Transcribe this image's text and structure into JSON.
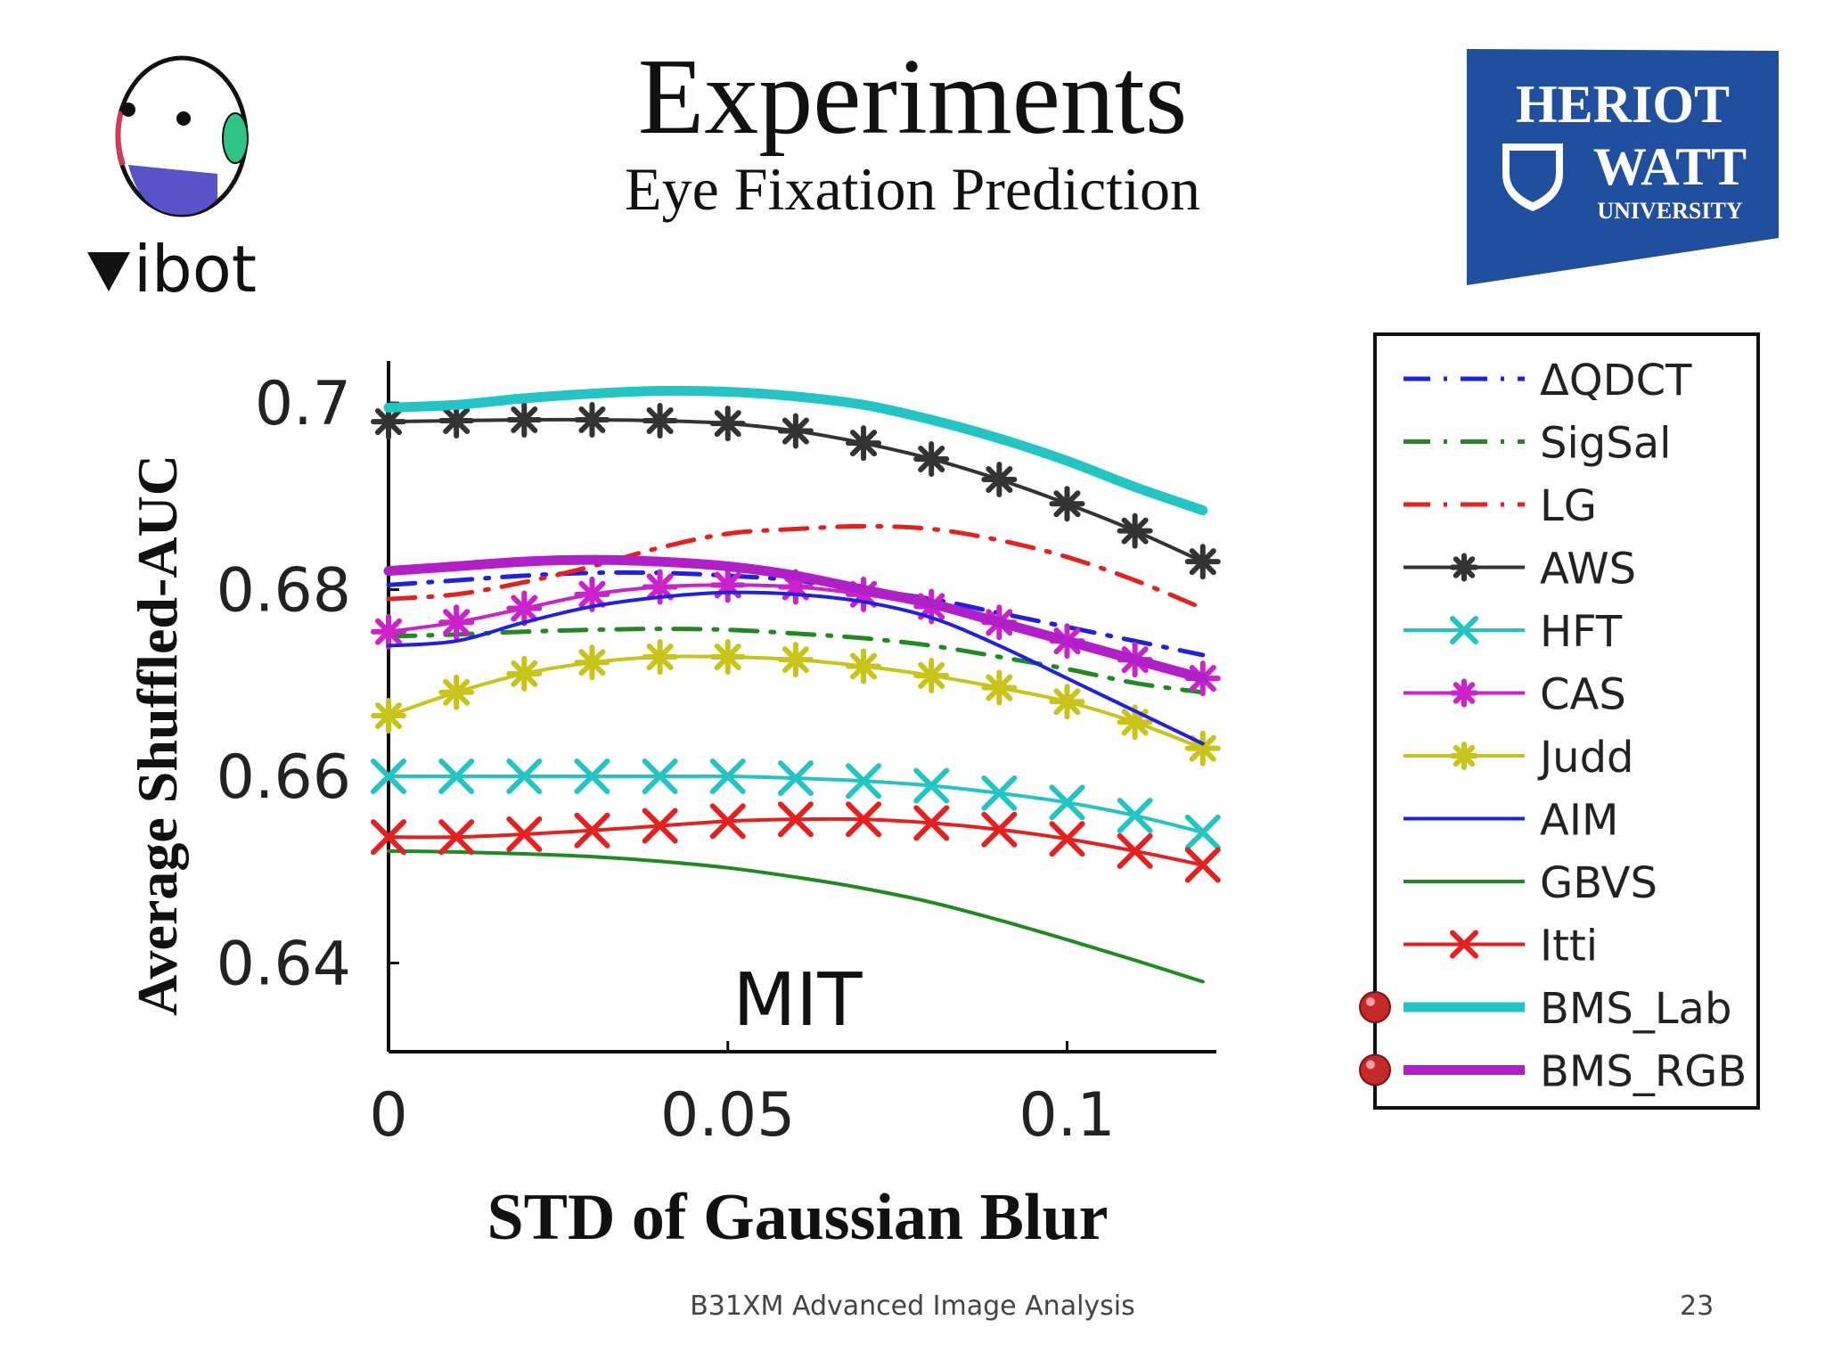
{
  "slide": {
    "title": "Experiments",
    "subtitle": "Eye Fixation Prediction",
    "footer": "B31XM Advanced Image Analysis",
    "page_number": "23",
    "left_logo_text": "ibot",
    "right_logo_lines": [
      "HERIOT",
      "WATT",
      "UNIVERSITY"
    ]
  },
  "chart_data": {
    "type": "line",
    "dataset_label": "MIT",
    "xlabel": "STD of Gaussian Blur",
    "ylabel": "Average Shuffled-AUC",
    "xlim": [
      0,
      0.122
    ],
    "ylim": [
      0.6305,
      0.7045
    ],
    "x_ticks": [
      0,
      0.05,
      0.1
    ],
    "x_tick_labels": [
      "0",
      "0.05",
      "0.1"
    ],
    "y_ticks": [
      0.64,
      0.66,
      0.68,
      0.7
    ],
    "y_tick_labels": [
      "0.64",
      "0.66",
      "0.68",
      "0.7"
    ],
    "grid": false,
    "legend_position": "right",
    "x": [
      0,
      0.01,
      0.02,
      0.03,
      0.04,
      0.05,
      0.06,
      0.07,
      0.08,
      0.09,
      0.1,
      0.11,
      0.12
    ],
    "series": [
      {
        "name": "ΔQDCT",
        "color": "#1f1fe6",
        "dash": "dashdot",
        "marker": "none",
        "width": 5,
        "values": [
          0.6805,
          0.681,
          0.6815,
          0.6818,
          0.6818,
          0.6815,
          0.681,
          0.68,
          0.679,
          0.6775,
          0.676,
          0.6745,
          0.673
        ]
      },
      {
        "name": "SigSal",
        "color": "#1f8a1f",
        "dash": "dashdot",
        "marker": "none",
        "width": 5,
        "values": [
          0.675,
          0.6752,
          0.6755,
          0.6757,
          0.6758,
          0.6757,
          0.6753,
          0.6748,
          0.674,
          0.6728,
          0.6715,
          0.67,
          0.669
        ]
      },
      {
        "name": "LG",
        "color": "#e61f1f",
        "dash": "dashdot",
        "marker": "none",
        "width": 5,
        "values": [
          0.679,
          0.6795,
          0.6808,
          0.6825,
          0.6845,
          0.686,
          0.6865,
          0.6868,
          0.6865,
          0.6853,
          0.6835,
          0.681,
          0.678
        ]
      },
      {
        "name": "AWS",
        "color": "#333333",
        "dash": "solid",
        "marker": "asterisk",
        "width": 4,
        "values": [
          0.698,
          0.6981,
          0.6982,
          0.6982,
          0.6981,
          0.6978,
          0.697,
          0.6957,
          0.694,
          0.6918,
          0.6892,
          0.6863,
          0.683
        ]
      },
      {
        "name": "HFT",
        "color": "#22c4c4",
        "dash": "solid",
        "marker": "x",
        "width": 4,
        "values": [
          0.66,
          0.66,
          0.66,
          0.66,
          0.66,
          0.66,
          0.6598,
          0.6595,
          0.659,
          0.6582,
          0.6572,
          0.6558,
          0.654
        ]
      },
      {
        "name": "CAS",
        "color": "#cc22cc",
        "dash": "solid",
        "marker": "asterisk",
        "width": 4,
        "values": [
          0.6755,
          0.6765,
          0.678,
          0.6795,
          0.6803,
          0.6805,
          0.6803,
          0.6795,
          0.6782,
          0.6765,
          0.6745,
          0.6725,
          0.6705
        ]
      },
      {
        "name": "Judd",
        "color": "#c8c41a",
        "dash": "solid",
        "marker": "asterisk",
        "width": 4,
        "values": [
          0.6665,
          0.669,
          0.671,
          0.6722,
          0.6728,
          0.6728,
          0.6725,
          0.6718,
          0.6708,
          0.6695,
          0.668,
          0.6658,
          0.663
        ]
      },
      {
        "name": "AIM",
        "color": "#1f1fe6",
        "dash": "solid",
        "marker": "none",
        "width": 4,
        "values": [
          0.674,
          0.6745,
          0.6765,
          0.6782,
          0.6792,
          0.6797,
          0.6795,
          0.6787,
          0.677,
          0.674,
          0.6705,
          0.667,
          0.6635
        ]
      },
      {
        "name": "GBVS",
        "color": "#1f8a1f",
        "dash": "solid",
        "marker": "none",
        "width": 4,
        "values": [
          0.652,
          0.6519,
          0.6517,
          0.6514,
          0.6509,
          0.6502,
          0.6492,
          0.648,
          0.6465,
          0.6446,
          0.6425,
          0.6403,
          0.638
        ]
      },
      {
        "name": "Itti",
        "color": "#e61f1f",
        "dash": "solid",
        "marker": "x",
        "width": 4,
        "values": [
          0.6535,
          0.6535,
          0.6538,
          0.6542,
          0.6547,
          0.6552,
          0.6554,
          0.6554,
          0.655,
          0.6543,
          0.6533,
          0.652,
          0.6505
        ]
      },
      {
        "name": "BMS_Lab",
        "color": "#22c4c4",
        "dash": "solid",
        "marker": "none",
        "width": 11,
        "values": [
          0.6995,
          0.6998,
          0.7005,
          0.701,
          0.7013,
          0.7012,
          0.7007,
          0.6998,
          0.6982,
          0.6962,
          0.6938,
          0.691,
          0.6885
        ]
      },
      {
        "name": "BMS_RGB",
        "color": "#b01fc8",
        "dash": "solid",
        "marker": "none",
        "width": 11,
        "values": [
          0.682,
          0.6825,
          0.683,
          0.6832,
          0.683,
          0.6825,
          0.6815,
          0.68,
          0.6785,
          0.6765,
          0.6745,
          0.6725,
          0.6705
        ]
      }
    ],
    "highlighted_series": [
      "BMS_Lab",
      "BMS_RGB"
    ]
  },
  "colors": {
    "hw_blue": "#1f4f9e",
    "bullet_red": "#c62828"
  }
}
